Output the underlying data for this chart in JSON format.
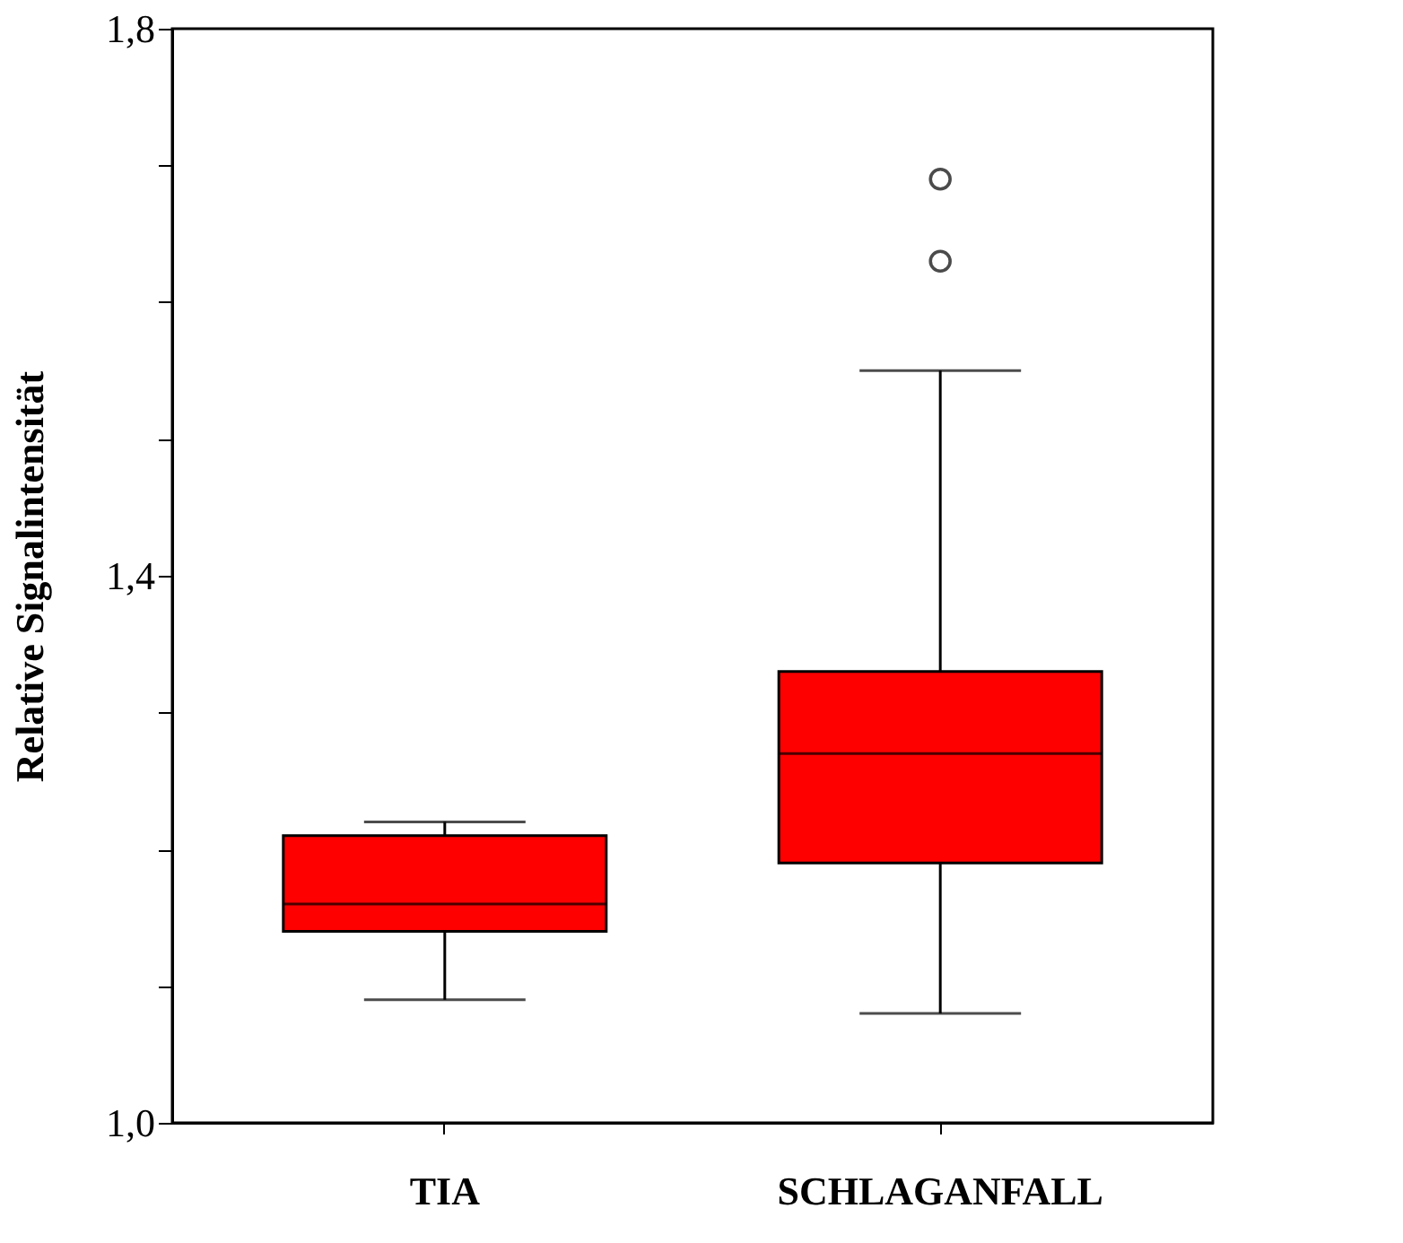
{
  "chart_data": {
    "type": "box",
    "ylabel": "Relative Signalintensität",
    "categories": [
      "TIA",
      "SCHLAGANFALL"
    ],
    "boxes": [
      {
        "low": 1.09,
        "q1": 1.14,
        "median": 1.16,
        "q3": 1.21,
        "high": 1.22
      },
      {
        "low": 1.08,
        "q1": 1.19,
        "median": 1.27,
        "q3": 1.33,
        "high": 1.55,
        "outliers": [
          1.63,
          1.69
        ]
      }
    ],
    "colors": [
      "#ff0000",
      "#ff0000"
    ],
    "ylim": [
      1.0,
      1.8
    ],
    "yticks": [
      {
        "value": 1.0,
        "label": "1,0"
      },
      {
        "value": 1.1,
        "label": null
      },
      {
        "value": 1.2,
        "label": null
      },
      {
        "value": 1.3,
        "label": null
      },
      {
        "value": 1.4,
        "label": "1,4"
      },
      {
        "value": 1.5,
        "label": null
      },
      {
        "value": 1.6,
        "label": null
      },
      {
        "value": 1.7,
        "label": null
      },
      {
        "value": 1.8,
        "label": "1,8"
      }
    ],
    "grid": false
  }
}
